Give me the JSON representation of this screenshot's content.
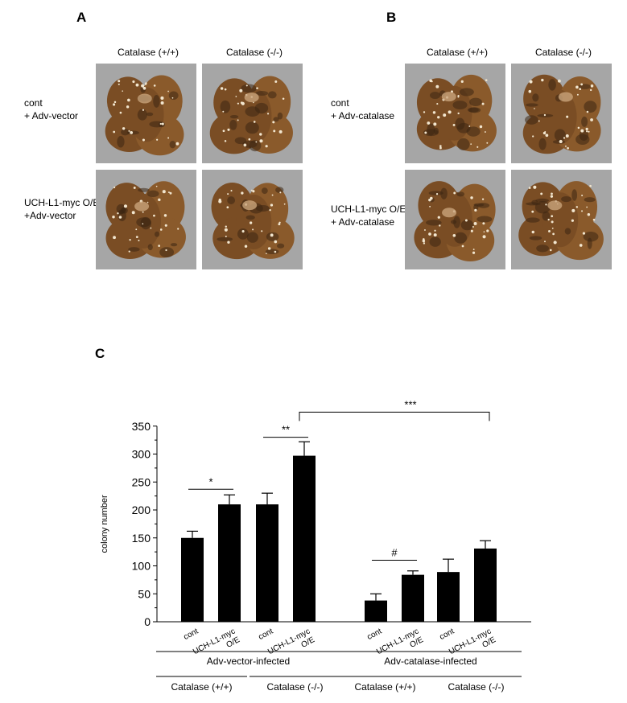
{
  "panels": {
    "A": {
      "letter": "A",
      "col_headers": [
        "Catalase (+/+)",
        "Catalase (-/-)"
      ],
      "rows": [
        {
          "label": "cont\n+ Adv-vector"
        },
        {
          "label": "UCH-L1-myc O/E\n+Adv-vector"
        }
      ]
    },
    "B": {
      "letter": "B",
      "col_headers": [
        "Catalase (+/+)",
        "Catalase (-/-)"
      ],
      "rows": [
        {
          "label": "cont\n+ Adv-catalase"
        },
        {
          "label": "UCH-L1-myc O/E\n+ Adv-catalase"
        }
      ]
    },
    "C": {
      "letter": "C"
    }
  },
  "colors": {
    "bar": "#000000",
    "photo_bg": "#a6a6a6",
    "lung_tissue": "#8a5a2b",
    "lung_dark": "#3d2612",
    "lung_light": "#c9a47a"
  },
  "chart_data": {
    "type": "bar",
    "ylabel": "colony number",
    "ylim": [
      0,
      350
    ],
    "yticks": [
      0,
      50,
      100,
      150,
      200,
      250,
      300,
      350
    ],
    "categories": [
      "cont",
      "UCH-L1-myc\nO/E",
      "cont",
      "UCH-L1-myc\nO/E",
      "cont",
      "UCH-L1-myc\nO/E",
      "cont",
      "UCH-L1-myc\nO/E"
    ],
    "values": [
      150,
      210,
      210,
      297,
      38,
      84,
      89,
      131
    ],
    "errors": [
      12,
      17,
      20,
      25,
      12,
      7,
      23,
      14
    ],
    "groups": [
      {
        "label": "Catalase (+/+)",
        "bars": [
          0,
          1
        ]
      },
      {
        "label": "Catalase (-/-)",
        "bars": [
          2,
          3
        ]
      },
      {
        "label": "Catalase (+/+)",
        "bars": [
          4,
          5
        ]
      },
      {
        "label": "Catalase (-/-)",
        "bars": [
          6,
          7
        ]
      }
    ],
    "supergroups": [
      {
        "label": "Adv-vector-infected",
        "bars": [
          0,
          3
        ]
      },
      {
        "label": "Adv-catalase-infected",
        "bars": [
          4,
          7
        ]
      }
    ],
    "annotations": [
      {
        "text": "*",
        "from": 0,
        "to": 1,
        "y": 237
      },
      {
        "text": "**",
        "from": 2,
        "to": 3,
        "y": 330
      },
      {
        "text": "#",
        "from": 4,
        "to": 5,
        "y": 110
      },
      {
        "text": "***",
        "from": 3,
        "to": 7,
        "y": 375,
        "bracket": true
      }
    ]
  }
}
